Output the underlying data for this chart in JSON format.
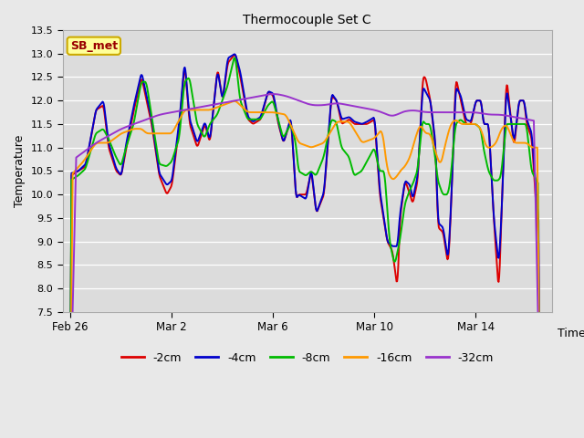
{
  "title": "Thermocouple Set C",
  "xlabel": "Time",
  "ylabel": "Temperature",
  "ylim": [
    7.5,
    13.5
  ],
  "yticks": [
    7.5,
    8.0,
    8.5,
    9.0,
    9.5,
    10.0,
    10.5,
    11.0,
    11.5,
    12.0,
    12.5,
    13.0,
    13.5
  ],
  "bg_color": "#e8e8e8",
  "plot_bg": "#dcdcdc",
  "grid_color": "#ffffff",
  "annot_text": "SB_met",
  "annot_bg": "#ffff99",
  "annot_edge": "#ccaa00",
  "annot_fc": "#990000",
  "series": [
    {
      "label": "-2cm",
      "color": "#dd0000",
      "lw": 1.4
    },
    {
      "label": "-4cm",
      "color": "#0000cc",
      "lw": 1.4
    },
    {
      "label": "-8cm",
      "color": "#00bb00",
      "lw": 1.4
    },
    {
      "label": "-16cm",
      "color": "#ff9900",
      "lw": 1.4
    },
    {
      "label": "-32cm",
      "color": "#9933cc",
      "lw": 1.4
    }
  ],
  "xtick_labels": [
    "Feb 26",
    "Mar 2",
    "Mar 6",
    "Mar 10",
    "Mar 14"
  ],
  "xtick_pos": [
    0,
    4,
    8,
    12,
    16
  ],
  "xlim": [
    -0.3,
    19.0
  ],
  "figsize": [
    6.4,
    4.8
  ],
  "dpi": 100
}
